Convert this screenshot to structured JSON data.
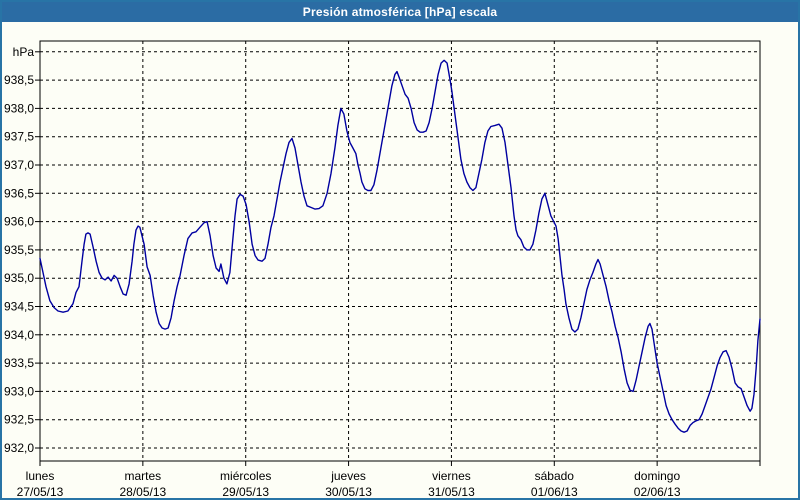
{
  "window": {
    "title": "Presión atmosférica [hPa] escala"
  },
  "colors": {
    "titlebar": "#2B6CA4",
    "window_border": "#2874A6",
    "background": "#FDFEF6",
    "line": "#0000A0",
    "grid": "#000000"
  },
  "chart_data": {
    "type": "line",
    "title": "Presión atmosférica [hPa] escala",
    "ylabel_unit": "hPa",
    "decimal_separator": ",",
    "ylim": [
      932.0,
      939.0
    ],
    "ytick_step": 0.5,
    "ytick_labels": [
      "938,5",
      "938,0",
      "937,5",
      "937,0",
      "936,5",
      "936,0",
      "935,5",
      "935,0",
      "934,5",
      "934,0",
      "933,5",
      "933,0",
      "932,5",
      "932,0"
    ],
    "grid": "dashed",
    "legend_position": "none",
    "x_axis": {
      "hours_total": 168,
      "day_ticks_hours": [
        0,
        24,
        48,
        72,
        96,
        120,
        144,
        168
      ],
      "days": [
        {
          "weekday": "lunes",
          "date": "27/05/13"
        },
        {
          "weekday": "martes",
          "date": "28/05/13"
        },
        {
          "weekday": "miércoles",
          "date": "29/05/13"
        },
        {
          "weekday": "jueves",
          "date": "30/05/13"
        },
        {
          "weekday": "viernes",
          "date": "31/05/13"
        },
        {
          "weekday": "sábado",
          "date": "01/06/13"
        },
        {
          "weekday": "domingo",
          "date": "02/06/13"
        }
      ]
    },
    "series": [
      {
        "name": "Presión atmosférica",
        "points": [
          [
            0.0,
            935.35
          ],
          [
            0.7,
            935.1
          ],
          [
            1.4,
            934.85
          ],
          [
            2.3,
            934.6
          ],
          [
            3.3,
            934.48
          ],
          [
            4.2,
            934.42
          ],
          [
            5.4,
            934.4
          ],
          [
            6.5,
            934.42
          ],
          [
            7.7,
            934.55
          ],
          [
            8.4,
            934.75
          ],
          [
            9.1,
            934.85
          ],
          [
            9.8,
            935.3
          ],
          [
            10.3,
            935.6
          ],
          [
            10.7,
            935.78
          ],
          [
            11.2,
            935.8
          ],
          [
            11.7,
            935.78
          ],
          [
            12.4,
            935.55
          ],
          [
            13.1,
            935.3
          ],
          [
            13.8,
            935.1
          ],
          [
            14.5,
            935.0
          ],
          [
            15.2,
            934.97
          ],
          [
            15.9,
            935.02
          ],
          [
            16.6,
            934.95
          ],
          [
            17.3,
            935.05
          ],
          [
            18.0,
            935.0
          ],
          [
            18.7,
            934.85
          ],
          [
            19.4,
            934.72
          ],
          [
            20.1,
            934.7
          ],
          [
            20.8,
            934.9
          ],
          [
            21.5,
            935.3
          ],
          [
            21.9,
            935.6
          ],
          [
            22.4,
            935.85
          ],
          [
            22.9,
            935.92
          ],
          [
            23.3,
            935.9
          ],
          [
            23.8,
            935.75
          ],
          [
            24.3,
            935.6
          ],
          [
            25.0,
            935.2
          ],
          [
            25.7,
            935.05
          ],
          [
            26.4,
            934.7
          ],
          [
            27.1,
            934.4
          ],
          [
            27.8,
            934.2
          ],
          [
            28.5,
            934.12
          ],
          [
            29.2,
            934.1
          ],
          [
            29.9,
            934.12
          ],
          [
            30.6,
            934.3
          ],
          [
            31.3,
            934.6
          ],
          [
            32.0,
            934.85
          ],
          [
            32.7,
            935.05
          ],
          [
            33.6,
            935.4
          ],
          [
            34.5,
            935.7
          ],
          [
            35.5,
            935.8
          ],
          [
            36.4,
            935.82
          ],
          [
            37.3,
            935.9
          ],
          [
            38.3,
            935.98
          ],
          [
            39.0,
            936.0
          ],
          [
            39.7,
            935.75
          ],
          [
            40.4,
            935.4
          ],
          [
            41.1,
            935.18
          ],
          [
            41.8,
            935.12
          ],
          [
            42.2,
            935.25
          ],
          [
            42.9,
            935.0
          ],
          [
            43.6,
            934.9
          ],
          [
            44.3,
            935.1
          ],
          [
            45.0,
            935.7
          ],
          [
            45.5,
            936.1
          ],
          [
            46.0,
            936.4
          ],
          [
            46.7,
            936.48
          ],
          [
            47.4,
            936.45
          ],
          [
            48.1,
            936.3
          ],
          [
            48.8,
            936.0
          ],
          [
            49.5,
            935.6
          ],
          [
            50.2,
            935.4
          ],
          [
            50.9,
            935.32
          ],
          [
            51.8,
            935.3
          ],
          [
            52.5,
            935.35
          ],
          [
            53.2,
            935.6
          ],
          [
            53.9,
            935.9
          ],
          [
            54.6,
            936.1
          ],
          [
            55.3,
            936.4
          ],
          [
            56.0,
            936.7
          ],
          [
            56.7,
            936.95
          ],
          [
            57.4,
            937.2
          ],
          [
            58.1,
            937.4
          ],
          [
            58.8,
            937.47
          ],
          [
            59.5,
            937.3
          ],
          [
            60.2,
            937.0
          ],
          [
            60.9,
            936.7
          ],
          [
            61.6,
            936.45
          ],
          [
            62.3,
            936.28
          ],
          [
            63.2,
            936.25
          ],
          [
            64.2,
            936.22
          ],
          [
            65.1,
            936.23
          ],
          [
            66.0,
            936.28
          ],
          [
            67.0,
            936.5
          ],
          [
            67.9,
            936.85
          ],
          [
            68.8,
            937.3
          ],
          [
            69.5,
            937.7
          ],
          [
            70.2,
            938.0
          ],
          [
            70.9,
            937.9
          ],
          [
            71.6,
            937.6
          ],
          [
            72.3,
            937.4
          ],
          [
            73.0,
            937.3
          ],
          [
            73.7,
            937.2
          ],
          [
            74.2,
            937.0
          ],
          [
            74.7,
            936.85
          ],
          [
            75.1,
            936.7
          ],
          [
            75.8,
            936.58
          ],
          [
            76.5,
            936.55
          ],
          [
            77.2,
            936.55
          ],
          [
            77.9,
            936.65
          ],
          [
            78.6,
            936.9
          ],
          [
            79.3,
            937.2
          ],
          [
            80.0,
            937.5
          ],
          [
            80.7,
            937.8
          ],
          [
            81.4,
            938.1
          ],
          [
            82.1,
            938.4
          ],
          [
            82.8,
            938.6
          ],
          [
            83.3,
            938.65
          ],
          [
            83.8,
            938.55
          ],
          [
            84.5,
            938.4
          ],
          [
            85.2,
            938.25
          ],
          [
            85.9,
            938.18
          ],
          [
            86.6,
            938.0
          ],
          [
            87.3,
            937.75
          ],
          [
            88.0,
            937.62
          ],
          [
            88.7,
            937.58
          ],
          [
            89.4,
            937.58
          ],
          [
            90.1,
            937.6
          ],
          [
            90.8,
            937.75
          ],
          [
            91.5,
            938.0
          ],
          [
            92.2,
            938.3
          ],
          [
            92.9,
            938.6
          ],
          [
            93.6,
            938.8
          ],
          [
            94.3,
            938.85
          ],
          [
            95.0,
            938.8
          ],
          [
            95.7,
            938.5
          ],
          [
            96.1,
            938.3
          ],
          [
            96.8,
            937.9
          ],
          [
            97.5,
            937.5
          ],
          [
            98.2,
            937.1
          ],
          [
            98.9,
            936.85
          ],
          [
            99.6,
            936.7
          ],
          [
            100.3,
            936.6
          ],
          [
            101.0,
            936.55
          ],
          [
            101.7,
            936.6
          ],
          [
            102.4,
            936.85
          ],
          [
            103.1,
            937.1
          ],
          [
            103.8,
            937.4
          ],
          [
            104.5,
            937.6
          ],
          [
            105.2,
            937.68
          ],
          [
            106.2,
            937.7
          ],
          [
            107.1,
            937.72
          ],
          [
            107.8,
            937.65
          ],
          [
            108.5,
            937.4
          ],
          [
            109.2,
            937.0
          ],
          [
            109.9,
            936.6
          ],
          [
            110.6,
            936.1
          ],
          [
            111.1,
            935.85
          ],
          [
            111.5,
            935.75
          ],
          [
            112.2,
            935.68
          ],
          [
            112.9,
            935.55
          ],
          [
            113.6,
            935.5
          ],
          [
            114.3,
            935.5
          ],
          [
            115.0,
            935.6
          ],
          [
            115.7,
            935.85
          ],
          [
            116.4,
            936.15
          ],
          [
            117.1,
            936.4
          ],
          [
            117.8,
            936.5
          ],
          [
            118.5,
            936.3
          ],
          [
            119.2,
            936.1
          ],
          [
            120.0,
            935.98
          ],
          [
            120.4,
            935.92
          ],
          [
            120.9,
            935.7
          ],
          [
            121.3,
            935.4
          ],
          [
            121.8,
            935.05
          ],
          [
            122.3,
            934.8
          ],
          [
            122.7,
            934.55
          ],
          [
            123.4,
            934.3
          ],
          [
            124.1,
            934.1
          ],
          [
            124.8,
            934.05
          ],
          [
            125.5,
            934.1
          ],
          [
            126.2,
            934.3
          ],
          [
            126.9,
            934.55
          ],
          [
            127.6,
            934.8
          ],
          [
            128.3,
            934.97
          ],
          [
            129.0,
            935.1
          ],
          [
            129.7,
            935.25
          ],
          [
            130.2,
            935.33
          ],
          [
            130.7,
            935.25
          ],
          [
            131.4,
            935.05
          ],
          [
            132.1,
            934.85
          ],
          [
            132.8,
            934.6
          ],
          [
            133.5,
            934.4
          ],
          [
            134.2,
            934.15
          ],
          [
            134.9,
            933.95
          ],
          [
            135.6,
            933.7
          ],
          [
            136.3,
            933.4
          ],
          [
            137.0,
            933.15
          ],
          [
            137.7,
            933.02
          ],
          [
            138.4,
            933.0
          ],
          [
            139.1,
            933.2
          ],
          [
            139.8,
            933.45
          ],
          [
            140.5,
            933.7
          ],
          [
            141.2,
            933.95
          ],
          [
            141.9,
            934.15
          ],
          [
            142.3,
            934.2
          ],
          [
            142.8,
            934.1
          ],
          [
            143.3,
            933.85
          ],
          [
            144.0,
            933.5
          ],
          [
            144.7,
            933.25
          ],
          [
            145.4,
            933.0
          ],
          [
            146.1,
            932.75
          ],
          [
            146.8,
            932.6
          ],
          [
            147.5,
            932.5
          ],
          [
            148.2,
            932.42
          ],
          [
            148.9,
            932.35
          ],
          [
            149.6,
            932.3
          ],
          [
            150.3,
            932.28
          ],
          [
            151.0,
            932.3
          ],
          [
            151.7,
            932.4
          ],
          [
            152.4,
            932.45
          ],
          [
            153.1,
            932.48
          ],
          [
            153.8,
            932.5
          ],
          [
            154.5,
            932.6
          ],
          [
            155.2,
            932.75
          ],
          [
            155.9,
            932.9
          ],
          [
            156.6,
            933.05
          ],
          [
            157.3,
            933.25
          ],
          [
            158.0,
            933.45
          ],
          [
            158.7,
            933.6
          ],
          [
            159.4,
            933.7
          ],
          [
            160.1,
            933.72
          ],
          [
            160.8,
            933.6
          ],
          [
            161.5,
            933.4
          ],
          [
            162.2,
            933.15
          ],
          [
            162.9,
            933.08
          ],
          [
            163.6,
            933.05
          ],
          [
            164.3,
            932.9
          ],
          [
            165.0,
            932.75
          ],
          [
            165.7,
            932.65
          ],
          [
            166.1,
            932.7
          ],
          [
            166.6,
            932.95
          ],
          [
            167.1,
            933.4
          ],
          [
            167.5,
            933.9
          ],
          [
            168.0,
            934.28
          ]
        ]
      }
    ]
  }
}
